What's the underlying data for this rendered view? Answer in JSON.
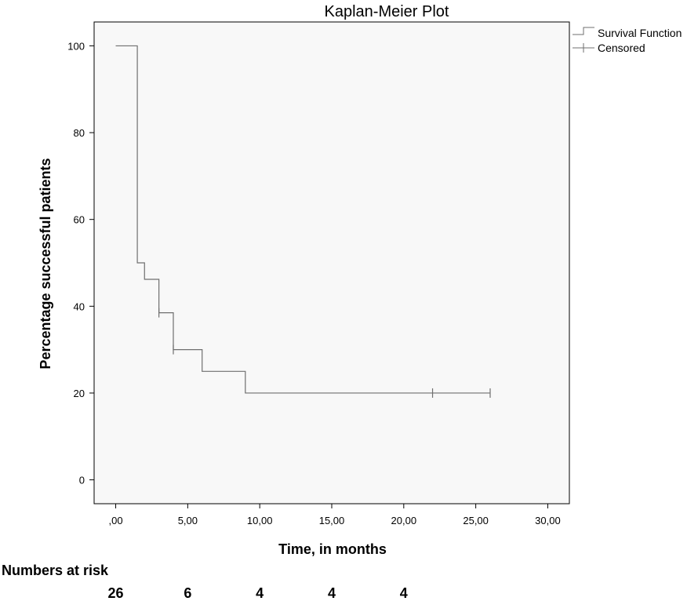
{
  "chart_data": {
    "type": "line",
    "subtype": "kaplan-meier-step",
    "title": "Kaplan-Meier Plot",
    "xlabel": "Time, in months",
    "ylabel": "Percentage successful patients",
    "xlim": [
      -1.5,
      31.5
    ],
    "ylim": [
      -5.5,
      105.5
    ],
    "x_ticks": [
      0,
      5,
      10,
      15,
      20,
      25,
      30
    ],
    "x_tick_labels": [
      ",00",
      "5,00",
      "10,00",
      "15,00",
      "20,00",
      "25,00",
      "30,00"
    ],
    "y_ticks": [
      0,
      20,
      40,
      60,
      80,
      100
    ],
    "y_tick_labels": [
      "0",
      "20",
      "40",
      "60",
      "80",
      "100"
    ],
    "grid": false,
    "legend_position": "outside-top-right",
    "plot_background": "#f8f8f8",
    "line_color": "#6f6f6f",
    "series": [
      {
        "name": "Survival Function",
        "steps": [
          {
            "x": 0.0,
            "y": 100
          },
          {
            "x": 1.5,
            "y": 50
          },
          {
            "x": 2.0,
            "y": 46.2
          },
          {
            "x": 3.0,
            "y": 38.5
          },
          {
            "x": 4.0,
            "y": 30
          },
          {
            "x": 6.0,
            "y": 25
          },
          {
            "x": 9.0,
            "y": 20
          },
          {
            "x": 26.0,
            "y": 20
          }
        ]
      },
      {
        "name": "Censored",
        "points": [
          {
            "x": 3.0,
            "y": 38.5
          },
          {
            "x": 4.0,
            "y": 30
          },
          {
            "x": 22.0,
            "y": 20
          },
          {
            "x": 26.0,
            "y": 20
          }
        ]
      }
    ],
    "numbers_at_risk": {
      "label": "Numbers at risk",
      "values": [
        "26",
        "6",
        "4",
        "4",
        "4"
      ]
    }
  }
}
